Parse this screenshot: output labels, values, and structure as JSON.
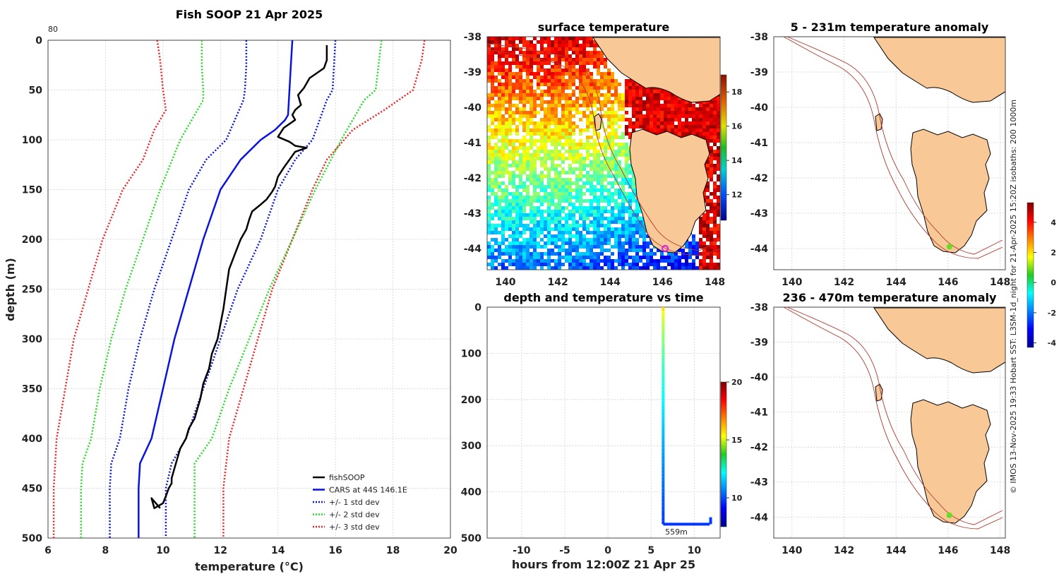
{
  "figure": {
    "credit": "© IMOS 13-Nov-2025 19:33 Hobart SST: L3SM-1d_night for 21-Apr-2025 15:20Z isobaths: 200  1000m"
  },
  "chart_data": [
    {
      "id": "profile",
      "type": "line",
      "title": "Fish SOOP 21 Apr 2025",
      "xlabel": "temperature (°C)",
      "ylabel": "depth (m)",
      "xlim": [
        6,
        20
      ],
      "ylim": [
        0,
        500
      ],
      "y_reversed": true,
      "xticks": [
        6,
        8,
        10,
        12,
        14,
        16,
        18,
        20
      ],
      "yticks": [
        0,
        50,
        100,
        150,
        200,
        250,
        300,
        350,
        400,
        450,
        500
      ],
      "corner_label": "80",
      "grid": true,
      "legend_position": "bottom-right",
      "series": [
        {
          "name": "fishSOOP",
          "color": "#000000",
          "style": "solid",
          "width": 2.5,
          "temps": [
            15.7,
            15.7,
            15.6,
            15.1,
            14.9,
            14.7,
            14.8,
            14.6,
            14.5,
            14.6,
            14.2,
            14.0,
            14.4,
            14.5,
            14.6,
            15.0,
            14.6,
            14.4,
            14.2,
            14.0,
            13.9,
            13.8,
            13.6,
            13.4,
            13.1,
            13.0,
            12.9,
            12.7,
            12.5,
            12.3,
            12.2,
            12.1,
            12.0,
            11.9,
            11.7,
            11.6,
            11.4,
            11.3,
            11.2,
            11.1,
            10.9,
            10.8,
            10.6,
            10.5,
            10.4,
            10.3,
            10.3,
            10.2,
            10.1,
            10.0,
            9.7,
            9.6,
            9.9
          ],
          "depths": [
            5,
            20,
            28,
            38,
            48,
            55,
            65,
            70,
            75,
            80,
            88,
            97,
            102,
            104,
            106,
            108,
            112,
            120,
            128,
            137,
            147,
            152,
            160,
            165,
            172,
            180,
            190,
            200,
            215,
            230,
            250,
            270,
            285,
            300,
            315,
            330,
            345,
            360,
            370,
            380,
            390,
            400,
            410,
            420,
            430,
            440,
            445,
            450,
            458,
            465,
            470,
            460,
            470
          ]
        },
        {
          "name": "CARS at 44S 146.1E",
          "color": "#0a14e0",
          "style": "solid",
          "width": 2.5,
          "temps": [
            14.5,
            14.45,
            14.4,
            14.35,
            14.25,
            13.9,
            13.4,
            12.7,
            12.0,
            11.4,
            10.9,
            10.4,
            10.0,
            9.6,
            9.2,
            9.15,
            9.15,
            9.15
          ],
          "depths": [
            0,
            25,
            50,
            75,
            80,
            90,
            100,
            120,
            150,
            200,
            250,
            300,
            350,
            400,
            425,
            450,
            475,
            500
          ]
        },
        {
          "name": "+/- 1 std dev",
          "color": "#0a14e0",
          "style": "dotted",
          "width": 2.5,
          "temps": [
            [
              12.9,
              12.9,
              12.85,
              12.8,
              12.2,
              11.5,
              10.9,
              10.3,
              9.7,
              9.2,
              8.8,
              8.5,
              8.2,
              8.15,
              8.15
            ],
            [
              16.0,
              15.95,
              15.9,
              15.7,
              15.2,
              14.6,
              14.0,
              13.4,
              12.6,
              12.0,
              11.4,
              10.8,
              10.3,
              10.1,
              10.1
            ]
          ],
          "depths": [
            0,
            25,
            50,
            60,
            100,
            120,
            150,
            200,
            250,
            300,
            350,
            400,
            425,
            450,
            500
          ]
        },
        {
          "name": "+/- 2 std dev",
          "color": "#22dd22",
          "style": "dotted",
          "width": 2.5,
          "temps": [
            [
              11.35,
              11.35,
              11.4,
              11.4,
              10.6,
              9.9,
              9.3,
              8.7,
              8.2,
              7.8,
              7.5,
              7.2,
              7.15,
              7.15
            ],
            [
              17.6,
              17.5,
              17.4,
              17.0,
              16.2,
              15.3,
              14.5,
              13.7,
              13.0,
              12.3,
              11.7,
              11.1,
              11.1,
              11.1
            ]
          ],
          "depths": [
            0,
            25,
            50,
            60,
            100,
            150,
            200,
            250,
            300,
            350,
            400,
            425,
            450,
            500
          ]
        },
        {
          "name": "+/- 3 std dev",
          "color": "#ee2222",
          "style": "dotted",
          "width": 2.5,
          "temps": [
            [
              9.8,
              9.9,
              10.0,
              10.1,
              9.7,
              9.3,
              8.6,
              7.9,
              7.4,
              6.9,
              6.6,
              6.3,
              6.2,
              6.2
            ],
            [
              19.1,
              19.0,
              18.7,
              17.7,
              16.6,
              15.7,
              15.2,
              14.5,
              13.8,
              13.3,
              12.8,
              12.3,
              12.1,
              12.1
            ]
          ],
          "depths": [
            0,
            20,
            50,
            70,
            90,
            120,
            150,
            200,
            250,
            300,
            350,
            400,
            450,
            500
          ]
        }
      ]
    },
    {
      "id": "surface",
      "type": "heatmap",
      "title": "surface temperature",
      "xlim": [
        139.3,
        148.2
      ],
      "ylim": [
        -44.6,
        -38
      ],
      "xticks": [
        140,
        142,
        144,
        146,
        148
      ],
      "yticks": [
        -38,
        -39,
        -40,
        -41,
        -42,
        -43,
        -44
      ],
      "colorbar": {
        "range": [
          10.5,
          19
        ],
        "ticks": [
          12,
          14,
          16,
          18
        ],
        "colormap": "jet"
      },
      "marker": {
        "lon": 146.1,
        "lat": -44.0,
        "color": "#e020e0",
        "shape": "circle"
      }
    },
    {
      "id": "anomaly-shallow",
      "type": "heatmap",
      "title": "5 - 231m temperature anomaly",
      "xlim": [
        139.3,
        148.2
      ],
      "ylim": [
        -44.6,
        -38
      ],
      "xticks": [
        140,
        142,
        144,
        146,
        148
      ],
      "yticks": [
        -38,
        -39,
        -40,
        -41,
        -42,
        -43,
        -44
      ],
      "marker": {
        "lon": 146.05,
        "lat": -43.95,
        "color": "#66dd22",
        "shape": "dot"
      }
    },
    {
      "id": "depth-time",
      "type": "scatter",
      "title": "depth and temperature vs time",
      "xlabel": "hours from 12:00Z 21 Apr 25",
      "xlim": [
        -14,
        13
      ],
      "ylim": [
        0,
        500
      ],
      "y_reversed": true,
      "xticks": [
        -10,
        -5,
        0,
        5,
        10
      ],
      "yticks": [
        0,
        100,
        200,
        300,
        400,
        500
      ],
      "annotation": "559m",
      "colorbar": {
        "range": [
          7.5,
          20
        ],
        "ticks": [
          10,
          15,
          20
        ],
        "colormap": "jet"
      },
      "track": {
        "descent": {
          "x": 6.4,
          "depth_start": 0,
          "depth_end": 470,
          "temp_start": 15.7,
          "temp_end": 9.7
        },
        "bottom": {
          "x_start": 6.4,
          "x_end": 11.8,
          "depth": 470,
          "temp": 9.7
        },
        "ascent": {
          "x": 11.9,
          "depth_start": 470,
          "depth_end": 455,
          "temp": 9.8
        }
      }
    },
    {
      "id": "anomaly-deep",
      "type": "heatmap",
      "title": "236 - 470m temperature anomaly",
      "xlim": [
        139.3,
        148.2
      ],
      "ylim": [
        -44.6,
        -38
      ],
      "xticks": [
        140,
        142,
        144,
        146,
        148
      ],
      "yticks": [
        -38,
        -39,
        -40,
        -41,
        -42,
        -43,
        -44
      ],
      "marker": {
        "lon": 146.05,
        "lat": -43.95,
        "color": "#66dd22",
        "shape": "dot"
      }
    },
    {
      "id": "anomaly-colorbar",
      "type": "heatmap",
      "title": "",
      "colorbar": {
        "range": [
          -4.3,
          5.3
        ],
        "ticks": [
          -4,
          -2,
          0,
          2,
          4
        ],
        "colormap": "jet"
      }
    }
  ]
}
